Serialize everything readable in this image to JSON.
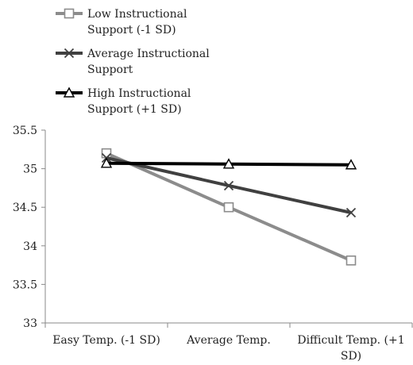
{
  "chart_data": {
    "type": "line",
    "categories": [
      "Easy Temp. (-1 SD)",
      "Average Temp.",
      "Difficult Temp. (+1 SD)"
    ],
    "category_label_lines": [
      [
        "Easy Temp. (-1 SD)"
      ],
      [
        "Average Temp."
      ],
      [
        "Difficult Temp. (+1",
        "SD)"
      ]
    ],
    "series": [
      {
        "name": "Low Instructional Support (-1 SD)",
        "name_lines": [
          "Low Instructional",
          "Support (-1 SD)"
        ],
        "values": [
          35.2,
          34.5,
          33.81
        ],
        "color": "#8c8c8c",
        "marker": "square"
      },
      {
        "name": "Average Instructional Support",
        "name_lines": [
          "Average Instructional",
          "Support"
        ],
        "values": [
          35.14,
          34.78,
          34.43
        ],
        "color": "#404040",
        "marker": "x"
      },
      {
        "name": "High Instructional Support (+1 SD)",
        "name_lines": [
          "High Instructional",
          "Support (+1 SD)"
        ],
        "values": [
          35.07,
          35.06,
          35.05
        ],
        "color": "#000000",
        "marker": "triangle"
      }
    ],
    "ylim": [
      33,
      35.5
    ],
    "yticks": [
      "33",
      "33.5",
      "34",
      "34.5",
      "35",
      "35.5"
    ],
    "grid": false,
    "legend_position": "top-left",
    "title": "",
    "xlabel": "",
    "ylabel": ""
  }
}
